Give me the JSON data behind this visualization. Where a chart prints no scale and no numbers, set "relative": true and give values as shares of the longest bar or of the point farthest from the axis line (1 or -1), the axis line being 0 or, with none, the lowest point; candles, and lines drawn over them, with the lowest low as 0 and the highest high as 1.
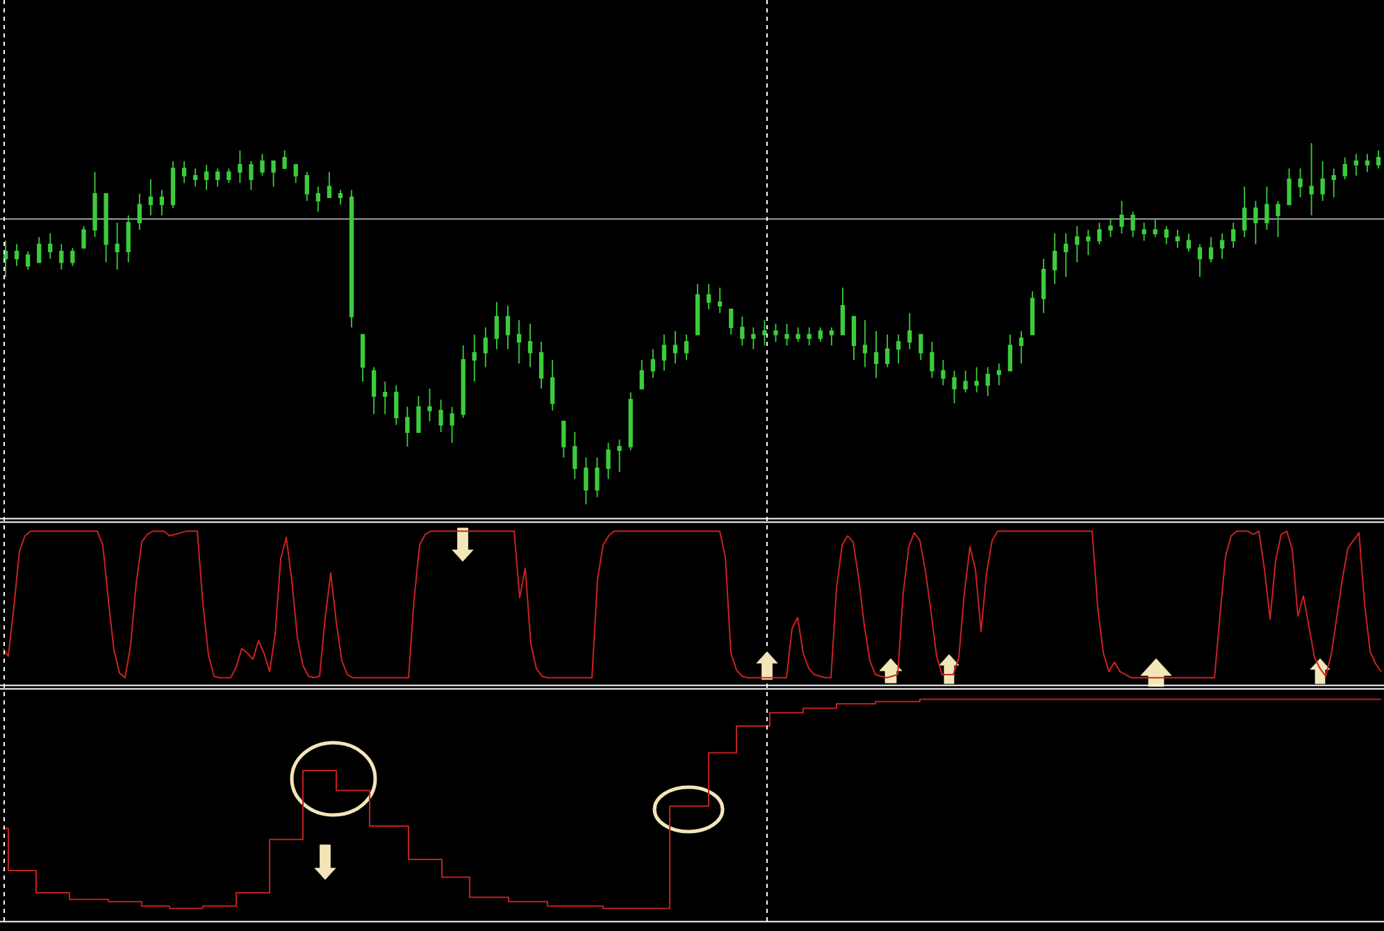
{
  "chart_data": [
    {
      "type": "candlestick",
      "relative": true,
      "color": "#3ccc3c",
      "categories": [
        null,
        null,
        null,
        null,
        null,
        null,
        null,
        null,
        null,
        null,
        null,
        null,
        null,
        null,
        null,
        null,
        null,
        null,
        null,
        null,
        null,
        null,
        null,
        null,
        null,
        null,
        null,
        null,
        null,
        null,
        null,
        null,
        null,
        null,
        null,
        null,
        null,
        null,
        null,
        null,
        null,
        null,
        null,
        null,
        null,
        null,
        null,
        null,
        null,
        null,
        null,
        null,
        null,
        null,
        null,
        null,
        null,
        null,
        null,
        null,
        null,
        null,
        null,
        null,
        null,
        null,
        null,
        null,
        null,
        null,
        null,
        null,
        null,
        null,
        null,
        null,
        null,
        null,
        null,
        null,
        null,
        null,
        null,
        null,
        null,
        null,
        null,
        null,
        null,
        null,
        null,
        null,
        null,
        null,
        null,
        null,
        null,
        null,
        null,
        null,
        null,
        null,
        null,
        null,
        null,
        null,
        null,
        null,
        null,
        null,
        null,
        null,
        null,
        null,
        null,
        null,
        null,
        null,
        null,
        null,
        null,
        null,
        null,
        null
      ],
      "ohlc": [
        [
          0.7,
          0.73,
          0.63,
          0.68
        ],
        [
          0.68,
          0.72,
          0.66,
          0.7
        ],
        [
          0.69,
          0.7,
          0.65,
          0.66
        ],
        [
          0.67,
          0.74,
          0.67,
          0.72
        ],
        [
          0.72,
          0.75,
          0.68,
          0.7
        ],
        [
          0.7,
          0.72,
          0.65,
          0.67
        ],
        [
          0.67,
          0.71,
          0.66,
          0.7
        ],
        [
          0.71,
          0.77,
          0.71,
          0.76
        ],
        [
          0.76,
          0.92,
          0.74,
          0.86
        ],
        [
          0.86,
          0.86,
          0.67,
          0.72
        ],
        [
          0.72,
          0.78,
          0.65,
          0.7
        ],
        [
          0.7,
          0.8,
          0.67,
          0.78
        ],
        [
          0.78,
          0.86,
          0.76,
          0.83
        ],
        [
          0.83,
          0.9,
          0.8,
          0.85
        ],
        [
          0.85,
          0.87,
          0.8,
          0.83
        ],
        [
          0.83,
          0.95,
          0.82,
          0.93
        ],
        [
          0.93,
          0.95,
          0.89,
          0.91
        ],
        [
          0.91,
          0.93,
          0.88,
          0.9
        ],
        [
          0.9,
          0.94,
          0.87,
          0.92
        ],
        [
          0.92,
          0.93,
          0.88,
          0.9
        ],
        [
          0.9,
          0.93,
          0.89,
          0.92
        ],
        [
          0.92,
          0.98,
          0.89,
          0.94
        ],
        [
          0.94,
          0.95,
          0.87,
          0.9
        ],
        [
          0.92,
          0.97,
          0.91,
          0.95
        ],
        [
          0.95,
          0.95,
          0.88,
          0.92
        ],
        [
          0.93,
          0.98,
          0.93,
          0.96
        ],
        [
          0.94,
          0.94,
          0.89,
          0.91
        ],
        [
          0.91,
          0.92,
          0.84,
          0.86
        ],
        [
          0.86,
          0.88,
          0.81,
          0.84
        ],
        [
          0.85,
          0.92,
          0.85,
          0.88
        ],
        [
          0.86,
          0.87,
          0.83,
          0.85
        ],
        [
          0.85,
          0.87,
          0.49,
          0.52
        ],
        [
          0.47,
          0.47,
          0.34,
          0.38
        ],
        [
          0.37,
          0.38,
          0.25,
          0.3
        ],
        [
          0.3,
          0.34,
          0.25,
          0.31
        ],
        [
          0.31,
          0.33,
          0.22,
          0.24
        ],
        [
          0.24,
          0.27,
          0.16,
          0.2
        ],
        [
          0.2,
          0.3,
          0.2,
          0.27
        ],
        [
          0.27,
          0.32,
          0.23,
          0.26
        ],
        [
          0.26,
          0.29,
          0.2,
          0.22
        ],
        [
          0.22,
          0.27,
          0.17,
          0.25
        ],
        [
          0.25,
          0.44,
          0.24,
          0.4
        ],
        [
          0.4,
          0.47,
          0.34,
          0.42
        ],
        [
          0.42,
          0.49,
          0.38,
          0.46
        ],
        [
          0.46,
          0.56,
          0.43,
          0.52
        ],
        [
          0.52,
          0.55,
          0.43,
          0.47
        ],
        [
          0.47,
          0.51,
          0.39,
          0.45
        ],
        [
          0.45,
          0.5,
          0.38,
          0.42
        ],
        [
          0.42,
          0.45,
          0.32,
          0.35
        ],
        [
          0.35,
          0.4,
          0.26,
          0.28
        ],
        [
          0.23,
          0.23,
          0.13,
          0.16
        ],
        [
          0.16,
          0.2,
          0.07,
          0.1
        ],
        [
          0.1,
          0.13,
          0,
          0.04
        ],
        [
          0.04,
          0.13,
          0.02,
          0.1
        ],
        [
          0.1,
          0.17,
          0.07,
          0.15
        ],
        [
          0.15,
          0.18,
          0.09,
          0.16
        ],
        [
          0.16,
          0.31,
          0.15,
          0.29
        ],
        [
          0.32,
          0.4,
          0.32,
          0.37
        ],
        [
          0.37,
          0.43,
          0.35,
          0.4
        ],
        [
          0.4,
          0.47,
          0.37,
          0.44
        ],
        [
          0.44,
          0.48,
          0.39,
          0.42
        ],
        [
          0.42,
          0.47,
          0.4,
          0.45
        ],
        [
          0.47,
          0.61,
          0.47,
          0.58
        ],
        [
          0.58,
          0.61,
          0.54,
          0.56
        ],
        [
          0.56,
          0.6,
          0.53,
          0.55
        ],
        [
          0.54,
          0.54,
          0.47,
          0.49
        ],
        [
          0.49,
          0.52,
          0.44,
          0.46
        ],
        [
          0.46,
          0.49,
          0.43,
          0.47
        ],
        [
          0.47,
          0.51,
          0.44,
          0.48
        ],
        [
          0.48,
          0.5,
          0.45,
          0.47
        ],
        [
          0.47,
          0.5,
          0.44,
          0.46
        ],
        [
          0.46,
          0.49,
          0.45,
          0.47
        ],
        [
          0.47,
          0.49,
          0.44,
          0.46
        ],
        [
          0.46,
          0.49,
          0.45,
          0.48
        ],
        [
          0.48,
          0.49,
          0.44,
          0.47
        ],
        [
          0.47,
          0.6,
          0.47,
          0.55
        ],
        [
          0.52,
          0.52,
          0.4,
          0.44
        ],
        [
          0.44,
          0.51,
          0.38,
          0.42
        ],
        [
          0.42,
          0.48,
          0.35,
          0.39
        ],
        [
          0.39,
          0.47,
          0.38,
          0.43
        ],
        [
          0.43,
          0.47,
          0.39,
          0.45
        ],
        [
          0.45,
          0.53,
          0.43,
          0.48
        ],
        [
          0.47,
          0.47,
          0.4,
          0.42
        ],
        [
          0.42,
          0.45,
          0.35,
          0.37
        ],
        [
          0.37,
          0.4,
          0.33,
          0.35
        ],
        [
          0.35,
          0.37,
          0.28,
          0.32
        ],
        [
          0.32,
          0.37,
          0.31,
          0.34
        ],
        [
          0.34,
          0.38,
          0.31,
          0.33
        ],
        [
          0.33,
          0.38,
          0.3,
          0.36
        ],
        [
          0.36,
          0.39,
          0.33,
          0.37
        ],
        [
          0.37,
          0.47,
          0.37,
          0.44
        ],
        [
          0.44,
          0.48,
          0.39,
          0.46
        ],
        [
          0.47,
          0.59,
          0.47,
          0.57
        ],
        [
          0.57,
          0.68,
          0.53,
          0.65
        ],
        [
          0.65,
          0.75,
          0.61,
          0.7
        ],
        [
          0.7,
          0.75,
          0.63,
          0.72
        ],
        [
          0.72,
          0.77,
          0.67,
          0.74
        ],
        [
          0.74,
          0.76,
          0.69,
          0.73
        ],
        [
          0.73,
          0.78,
          0.72,
          0.76
        ],
        [
          0.76,
          0.79,
          0.74,
          0.77
        ],
        [
          0.77,
          0.84,
          0.75,
          0.8
        ],
        [
          0.8,
          0.81,
          0.74,
          0.76
        ],
        [
          0.76,
          0.78,
          0.73,
          0.75
        ],
        [
          0.75,
          0.79,
          0.74,
          0.76
        ],
        [
          0.76,
          0.77,
          0.72,
          0.74
        ],
        [
          0.74,
          0.76,
          0.71,
          0.73
        ],
        [
          0.73,
          0.75,
          0.7,
          0.71
        ],
        [
          0.71,
          0.72,
          0.63,
          0.68
        ],
        [
          0.68,
          0.74,
          0.67,
          0.71
        ],
        [
          0.71,
          0.75,
          0.68,
          0.73
        ],
        [
          0.73,
          0.78,
          0.71,
          0.76
        ],
        [
          0.76,
          0.88,
          0.74,
          0.82
        ],
        [
          0.82,
          0.84,
          0.72,
          0.78
        ],
        [
          0.78,
          0.88,
          0.76,
          0.83
        ],
        [
          0.83,
          0.84,
          0.74,
          0.8
        ],
        [
          0.83,
          0.93,
          0.83,
          0.9
        ],
        [
          0.9,
          0.93,
          0.85,
          0.88
        ],
        [
          0.88,
          1,
          0.8,
          0.86
        ],
        [
          0.86,
          0.95,
          0.84,
          0.9
        ],
        [
          0.9,
          0.93,
          0.85,
          0.91
        ],
        [
          0.91,
          0.96,
          0.9,
          0.94
        ],
        [
          0.94,
          0.97,
          0.91,
          0.95
        ],
        [
          0.95,
          0.97,
          0.92,
          0.94
        ],
        [
          0.94,
          0.98,
          0.93,
          0.96
        ]
      ],
      "ref_lines": [
        {
          "axis": "y",
          "value": 0.79,
          "color": "#a0a0a8"
        }
      ]
    },
    {
      "type": "line",
      "relative": true,
      "color": "#cc2222",
      "categories": [
        null,
        null,
        null,
        null,
        null,
        null,
        null,
        null,
        null,
        null,
        null,
        null,
        null,
        null,
        null,
        null,
        null,
        null,
        null,
        null,
        null,
        null,
        null,
        null,
        null,
        null,
        null,
        null,
        null,
        null,
        null,
        null,
        null,
        null,
        null,
        null,
        null,
        null,
        null,
        null,
        null,
        null,
        null,
        null,
        null,
        null,
        null,
        null,
        null,
        null,
        null,
        null,
        null,
        null,
        null,
        null,
        null,
        null,
        null,
        null,
        null,
        null,
        null,
        null,
        null,
        null,
        null,
        null,
        null,
        null,
        null,
        null,
        null,
        null,
        null,
        null,
        null,
        null,
        null,
        null,
        null,
        null,
        null,
        null,
        null,
        null,
        null,
        null,
        null,
        null,
        null,
        null,
        null,
        null,
        null,
        null,
        null,
        null,
        null,
        null,
        null,
        null,
        null,
        null,
        null,
        null,
        null,
        null,
        null,
        null,
        null,
        null,
        null,
        null,
        null,
        null,
        null,
        null,
        null,
        null,
        null,
        null,
        null,
        null,
        null,
        null,
        null,
        null,
        null,
        null,
        null,
        null,
        null,
        null,
        null,
        null,
        null,
        null,
        null,
        null,
        null,
        null,
        null,
        null,
        null,
        null,
        null,
        null,
        null,
        null,
        null,
        null,
        null,
        null,
        null,
        null,
        null,
        null,
        null,
        null,
        null,
        null,
        null,
        null,
        null,
        null,
        null,
        null,
        null,
        null,
        null,
        null,
        null,
        null,
        null,
        null,
        null,
        null,
        null,
        null,
        null,
        null,
        null,
        null,
        null,
        null,
        null,
        null,
        null,
        null,
        null,
        null,
        null,
        null,
        null,
        null,
        null,
        null,
        null,
        null,
        null,
        null,
        null,
        null,
        null,
        null,
        null,
        null,
        null,
        null,
        null,
        null,
        null,
        null,
        null,
        null,
        null,
        null,
        null,
        null,
        null,
        null,
        null,
        null,
        null,
        null,
        null,
        null,
        null,
        null,
        null,
        null,
        null,
        null,
        null,
        null,
        null,
        null,
        null,
        null,
        null,
        null,
        null,
        null,
        null,
        null,
        null,
        null,
        null
      ],
      "values": [
        0.24,
        0.19,
        0.51,
        0.87,
        0.97,
        1,
        1,
        1,
        1,
        1,
        1,
        1,
        1,
        1,
        1,
        1,
        1,
        1,
        0.91,
        0.55,
        0.23,
        0.08,
        0.05,
        0.26,
        0.66,
        0.93,
        0.98,
        1,
        1,
        1,
        0.97,
        0.98,
        0.99,
        1,
        1,
        1,
        0.53,
        0.2,
        0.06,
        0.05,
        0.05,
        0.05,
        0.12,
        0.24,
        0.21,
        0.17,
        0.29,
        0.21,
        0.09,
        0.33,
        0.82,
        0.96,
        0.68,
        0.31,
        0.13,
        0.06,
        0.05,
        0.06,
        0.44,
        0.73,
        0.41,
        0.16,
        0.07,
        0.05,
        0.05,
        0.05,
        0.05,
        0.05,
        0.05,
        0.05,
        0.05,
        0.05,
        0.05,
        0.05,
        0.56,
        0.91,
        0.98,
        1,
        1,
        1,
        1,
        1,
        1,
        1,
        1,
        1,
        1,
        1,
        1,
        1,
        1,
        1,
        1,
        0.57,
        0.76,
        0.27,
        0.11,
        0.06,
        0.05,
        0.05,
        0.05,
        0.05,
        0.05,
        0.05,
        0.05,
        0.05,
        0.05,
        0.69,
        0.91,
        0.97,
        1,
        1,
        1,
        1,
        1,
        1,
        1,
        1,
        1,
        1,
        1,
        1,
        1,
        1,
        1,
        1,
        1,
        1,
        1,
        1,
        0.83,
        0.21,
        0.1,
        0.06,
        0.05,
        0.05,
        0.05,
        0.05,
        0.05,
        0.05,
        0.05,
        0.05,
        0.37,
        0.44,
        0.21,
        0.11,
        0.07,
        0.06,
        0.05,
        0.05,
        0.63,
        0.91,
        0.97,
        0.93,
        0.69,
        0.39,
        0.16,
        0.07,
        0.06,
        0.05,
        0.06,
        0.07,
        0.6,
        0.9,
        0.99,
        0.94,
        0.74,
        0.48,
        0.19,
        0.07,
        0.07,
        0.07,
        0.18,
        0.6,
        0.9,
        0.75,
        0.35,
        0.73,
        0.94,
        1,
        1,
        1,
        1,
        1,
        1,
        1,
        1,
        1,
        1,
        1,
        1,
        1,
        1,
        1,
        1,
        1,
        1,
        0.5,
        0.21,
        0.09,
        0.15,
        0.09,
        0.07,
        0.05,
        0.05,
        0.05,
        0.05,
        0.05,
        0.05,
        0.05,
        0.05,
        0.05,
        0.05,
        0.05,
        0.05,
        0.05,
        0.05,
        0.05,
        0.05,
        0.46,
        0.84,
        0.97,
        1,
        1,
        1,
        0.98,
        1,
        0.75,
        0.43,
        0.81,
        0.98,
        1,
        0.88,
        0.45,
        0.58,
        0.38,
        0.18,
        0.11,
        0.06,
        0.2,
        0.44,
        0.69,
        0.89,
        0.94,
        0.99,
        0.53,
        0.22,
        0.14,
        0.09
      ]
    },
    {
      "type": "step",
      "relative": true,
      "color": "#c02020",
      "categories": [
        null,
        null,
        null,
        null,
        null,
        null,
        null,
        null,
        null,
        null,
        null,
        null,
        null,
        null,
        null,
        null,
        null,
        null,
        null,
        null,
        null,
        null,
        null,
        null,
        null,
        null,
        null,
        null,
        null,
        null,
        null,
        null,
        null,
        null,
        null,
        null,
        null,
        null,
        null,
        null,
        null,
        null,
        null,
        null,
        null,
        null,
        null,
        null,
        null,
        null,
        null,
        null,
        null,
        null,
        null,
        null,
        null,
        null,
        null,
        null,
        null,
        null,
        null,
        null,
        null,
        null,
        null,
        null,
        null,
        null,
        null,
        null,
        null,
        null,
        null,
        null,
        null,
        null,
        null,
        null,
        null,
        null,
        null,
        null,
        null,
        null,
        null,
        null,
        null,
        null,
        null,
        null,
        null,
        null,
        null,
        null,
        null,
        null,
        null,
        null,
        null,
        null,
        null,
        null,
        null,
        null,
        null,
        null,
        null,
        null,
        null,
        null,
        null,
        null,
        null,
        null,
        null,
        null,
        null,
        null,
        null,
        null,
        null,
        null,
        null,
        null,
        null,
        null,
        null,
        null,
        null,
        null,
        null,
        null,
        null,
        null,
        null,
        null,
        null,
        null,
        null,
        null,
        null,
        null,
        null,
        null,
        null,
        null,
        null,
        null,
        null,
        null,
        null,
        null,
        null,
        null,
        null,
        null,
        null,
        null,
        null,
        null,
        null,
        null,
        null,
        null,
        null,
        null,
        null,
        null,
        null,
        null,
        null,
        null,
        null,
        null,
        null,
        null,
        null,
        null,
        null,
        null,
        null,
        null,
        null,
        null,
        null,
        null,
        null,
        null,
        null,
        null,
        null,
        null,
        null,
        null,
        null,
        null,
        null,
        null,
        null,
        null,
        null,
        null,
        null,
        null,
        null,
        null,
        null,
        null,
        null,
        null,
        null,
        null,
        null,
        null,
        null,
        null,
        null,
        null,
        null,
        null,
        null,
        null,
        null,
        null,
        null,
        null,
        null,
        null,
        null,
        null,
        null,
        null,
        null,
        null,
        null,
        null,
        null,
        null,
        null,
        null,
        null,
        null,
        null,
        null,
        null,
        null,
        null
      ],
      "values": [
        0.42,
        0.23,
        0.23,
        0.23,
        0.23,
        0.23,
        0.13,
        0.13,
        0.13,
        0.13,
        0.13,
        0.13,
        0.1,
        0.1,
        0.1,
        0.1,
        0.1,
        0.1,
        0.1,
        0.09,
        0.09,
        0.09,
        0.09,
        0.09,
        0.09,
        0.07,
        0.07,
        0.07,
        0.07,
        0.07,
        0.06,
        0.06,
        0.06,
        0.06,
        0.06,
        0.06,
        0.07,
        0.07,
        0.07,
        0.07,
        0.07,
        0.07,
        0.13,
        0.13,
        0.13,
        0.13,
        0.13,
        0.13,
        0.37,
        0.37,
        0.37,
        0.37,
        0.37,
        0.37,
        0.68,
        0.68,
        0.68,
        0.68,
        0.68,
        0.68,
        0.59,
        0.59,
        0.59,
        0.59,
        0.59,
        0.59,
        0.43,
        0.43,
        0.43,
        0.43,
        0.43,
        0.43,
        0.43,
        0.28,
        0.28,
        0.28,
        0.28,
        0.28,
        0.28,
        0.2,
        0.2,
        0.2,
        0.2,
        0.2,
        0.11,
        0.11,
        0.11,
        0.11,
        0.11,
        0.11,
        0.11,
        0.09,
        0.09,
        0.09,
        0.09,
        0.09,
        0.09,
        0.09,
        0.07,
        0.07,
        0.07,
        0.07,
        0.07,
        0.07,
        0.07,
        0.07,
        0.07,
        0.07,
        0.06,
        0.06,
        0.06,
        0.06,
        0.06,
        0.06,
        0.06,
        0.06,
        0.06,
        0.06,
        0.06,
        0.06,
        0.52,
        0.52,
        0.52,
        0.52,
        0.52,
        0.52,
        0.52,
        0.76,
        0.76,
        0.76,
        0.76,
        0.76,
        0.88,
        0.88,
        0.88,
        0.88,
        0.88,
        0.88,
        0.94,
        0.94,
        0.94,
        0.94,
        0.94,
        0.94,
        0.96,
        0.96,
        0.96,
        0.96,
        0.96,
        0.96,
        0.98,
        0.98,
        0.98,
        0.98,
        0.98,
        0.98,
        0.98,
        0.99,
        0.99,
        0.99,
        0.99,
        0.99,
        0.99,
        0.99,
        0.99,
        1,
        1,
        1,
        1,
        1,
        1,
        1,
        1,
        1,
        1,
        1,
        1,
        1,
        1,
        1,
        1,
        1,
        1,
        1,
        1,
        1,
        1,
        1,
        1,
        1,
        1,
        1,
        1,
        1,
        1,
        1,
        1,
        1,
        1,
        1,
        1,
        1,
        1,
        1,
        1,
        1,
        1,
        1,
        1,
        1,
        1,
        1,
        1,
        1,
        1,
        1,
        1,
        1,
        1,
        1,
        1,
        1,
        1,
        1,
        1,
        1,
        1,
        1,
        1,
        1,
        1,
        1,
        1,
        1,
        1,
        1,
        1,
        1,
        1,
        1,
        1,
        1,
        1,
        1,
        1,
        1,
        1,
        1,
        1
      ]
    }
  ]
}
